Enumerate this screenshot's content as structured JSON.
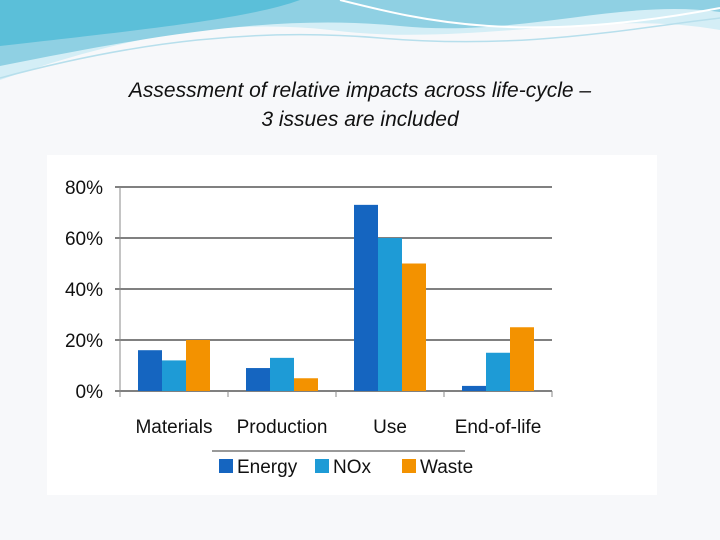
{
  "slide": {
    "title_line1": "Assessment of relative impacts across life-cycle –",
    "title_line2": "3 issues are included"
  },
  "chart_data": {
    "type": "bar",
    "title": "",
    "xlabel": "",
    "ylabel": "",
    "categories": [
      "Materials",
      "Production",
      "Use",
      "End-of-life"
    ],
    "series": [
      {
        "name": "Energy",
        "color": "#1565c0",
        "values": [
          16,
          9,
          73,
          2
        ]
      },
      {
        "name": "NOx",
        "color": "#1e9bd6",
        "values": [
          12,
          13,
          60,
          15
        ]
      },
      {
        "name": "Waste",
        "color": "#f39200",
        "values": [
          20,
          5,
          50,
          25
        ]
      }
    ],
    "ylim": [
      0,
      80
    ],
    "yticks": [
      0,
      20,
      40,
      60,
      80
    ],
    "ytick_labels": [
      "0%",
      "20%",
      "40%",
      "60%",
      "80%"
    ],
    "grid": true,
    "legend_position": "bottom"
  }
}
